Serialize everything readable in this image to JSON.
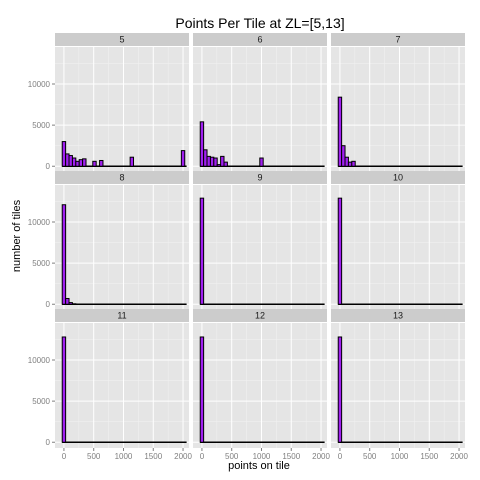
{
  "chart_data": {
    "type": "bar",
    "title": "Points Per Tile at ZL=[5,13]",
    "xlabel": "points on tile",
    "ylabel": "number of tiles",
    "xlim": [
      -150,
      2100
    ],
    "ylim": [
      -700,
      14500
    ],
    "x_ticks": [
      0,
      500,
      1000,
      1500,
      2000
    ],
    "y_ticks": [
      0,
      5000,
      10000
    ],
    "bin_width": 57,
    "colors": {
      "bar_fill": "#a020f0",
      "bar_outline": "#000000",
      "panel": "#e5e5e5",
      "strip": "#cccccc"
    },
    "grid": true,
    "facets": [
      {
        "label": "5",
        "bins": [
          {
            "x": 0,
            "y": 3000
          },
          {
            "x": 57,
            "y": 1500
          },
          {
            "x": 114,
            "y": 1300
          },
          {
            "x": 171,
            "y": 1000
          },
          {
            "x": 228,
            "y": 600
          },
          {
            "x": 285,
            "y": 800
          },
          {
            "x": 342,
            "y": 900
          },
          {
            "x": 513,
            "y": 600
          },
          {
            "x": 627,
            "y": 700
          },
          {
            "x": 1140,
            "y": 1100
          },
          {
            "x": 2000,
            "y": 1900
          }
        ]
      },
      {
        "label": "6",
        "bins": [
          {
            "x": 0,
            "y": 5400
          },
          {
            "x": 57,
            "y": 2000
          },
          {
            "x": 114,
            "y": 1200
          },
          {
            "x": 171,
            "y": 1100
          },
          {
            "x": 228,
            "y": 1000
          },
          {
            "x": 285,
            "y": 200
          },
          {
            "x": 342,
            "y": 1200
          },
          {
            "x": 399,
            "y": 500
          },
          {
            "x": 1000,
            "y": 1000
          }
        ]
      },
      {
        "label": "7",
        "bins": [
          {
            "x": 0,
            "y": 8400
          },
          {
            "x": 57,
            "y": 2500
          },
          {
            "x": 114,
            "y": 1100
          },
          {
            "x": 171,
            "y": 500
          },
          {
            "x": 228,
            "y": 600
          }
        ]
      },
      {
        "label": "8",
        "bins": [
          {
            "x": 0,
            "y": 12100
          },
          {
            "x": 57,
            "y": 700
          },
          {
            "x": 114,
            "y": 200
          },
          {
            "x": 171,
            "y": 60
          }
        ]
      },
      {
        "label": "9",
        "bins": [
          {
            "x": 0,
            "y": 12900
          }
        ]
      },
      {
        "label": "10",
        "bins": [
          {
            "x": 0,
            "y": 12900
          }
        ]
      },
      {
        "label": "11",
        "bins": [
          {
            "x": 0,
            "y": 12800
          }
        ]
      },
      {
        "label": "12",
        "bins": [
          {
            "x": 0,
            "y": 12800
          }
        ]
      },
      {
        "label": "13",
        "bins": [
          {
            "x": 0,
            "y": 12800
          }
        ]
      }
    ]
  }
}
